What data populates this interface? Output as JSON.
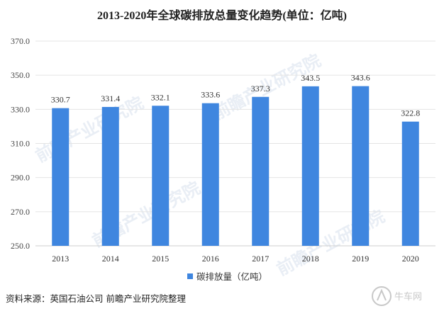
{
  "chart_data": {
    "type": "bar",
    "title": "2013-2020年全球碳排放总量变化趋势(单位：亿吨)",
    "categories": [
      "2013",
      "2014",
      "2015",
      "2016",
      "2017",
      "2018",
      "2019",
      "2020"
    ],
    "series": [
      {
        "name": "碳排放量（亿吨）",
        "values": [
          330.7,
          331.4,
          332.1,
          333.6,
          337.3,
          343.5,
          343.6,
          322.8
        ]
      }
    ],
    "value_labels": [
      "330.7",
      "331.4",
      "332.1",
      "333.6",
      "337.3",
      "343.5",
      "343.6",
      "322.8"
    ],
    "yticks": [
      "250.0",
      "270.0",
      "290.0",
      "310.0",
      "330.0",
      "350.0",
      "370.0"
    ],
    "ylim": [
      250,
      370
    ],
    "grid": true,
    "legend_position": "bottom",
    "bar_color": "#3f86df"
  },
  "source_text": "资料来源：英国石油公司 前瞻产业研究院整理",
  "watermark_text": "前瞻产业研究院",
  "corner_logo_text": "牛车网"
}
